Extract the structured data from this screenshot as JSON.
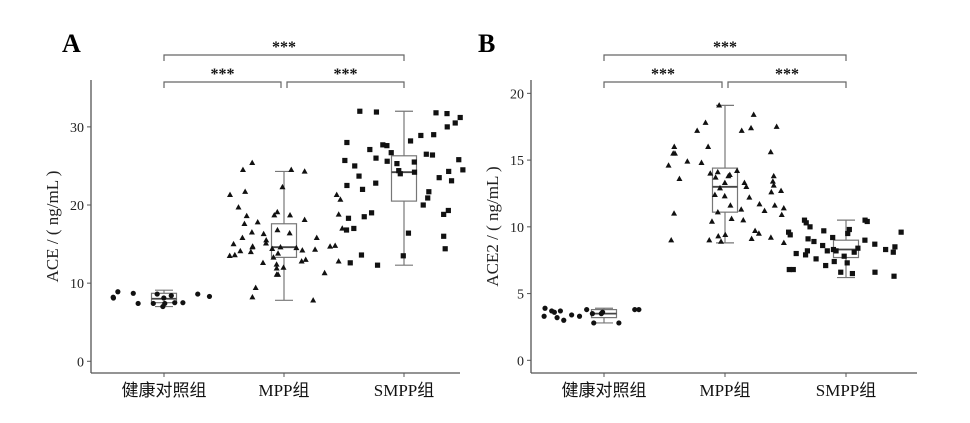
{
  "chart_data": [
    {
      "type": "box+scatter",
      "panel_label": "A",
      "ylabel": "ACE / ( ng/mL )",
      "xlabel": "",
      "categories": [
        "健康对照组",
        "MPP组",
        "SMPP组"
      ],
      "ylim": [
        -1.5,
        36
      ],
      "yticks": [
        0,
        10,
        20,
        30
      ],
      "grid": false,
      "markers": [
        "circle",
        "triangle",
        "square"
      ],
      "boxes": [
        {
          "min": 7.0,
          "q1": 7.5,
          "median": 8.0,
          "q3": 8.7,
          "max": 9.1
        },
        {
          "min": 7.8,
          "q1": 13.3,
          "median": 14.6,
          "q3": 17.6,
          "max": 24.3
        },
        {
          "min": 12.3,
          "q1": 20.5,
          "median": 24.2,
          "q3": 26.3,
          "max": 32.0
        }
      ],
      "points": [
        [
          7.0,
          8.4,
          8.9,
          8.7,
          8.6,
          7.4,
          8.1,
          8.3,
          7.5,
          7.4,
          7.4,
          8.6,
          7.5,
          8.2,
          8.1
        ],
        [
          25.4,
          24.3,
          24.5,
          24.5,
          22.3,
          21.7,
          21.3,
          21.3,
          20.7,
          19.7,
          19.1,
          18.8,
          18.6,
          18.7,
          18.7,
          18.1,
          17.8,
          17.6,
          17.0,
          16.8,
          16.5,
          16.4,
          16.3,
          15.8,
          15.8,
          15.5,
          15.1,
          15.0,
          14.8,
          14.7,
          14.7,
          14.6,
          14.6,
          14.5,
          14.4,
          14.3,
          14.2,
          14.1,
          14.0,
          13.8,
          13.6,
          13.5,
          13.3,
          13.0,
          12.8,
          12.8,
          12.6,
          12.4,
          12.0,
          11.9,
          11.3,
          11.1,
          11.1,
          9.4,
          8.2,
          7.8
        ],
        [
          32.0,
          31.9,
          31.8,
          31.7,
          31.2,
          30.5,
          30.0,
          29.0,
          28.9,
          28.2,
          28.0,
          27.7,
          27.6,
          27.1,
          26.7,
          26.5,
          26.4,
          26.0,
          25.8,
          25.7,
          25.6,
          25.5,
          25.3,
          25.0,
          24.5,
          24.4,
          24.3,
          24.2,
          24.0,
          23.7,
          23.5,
          23.1,
          22.8,
          22.5,
          22.0,
          21.7,
          20.9,
          20.0,
          19.3,
          19.0,
          18.8,
          18.5,
          18.3,
          17.0,
          16.8,
          16.4,
          16.0,
          14.4,
          13.6,
          13.5,
          12.6,
          12.3
        ]
      ],
      "comparisons": [
        {
          "from": 0,
          "to": 2,
          "label": "***",
          "level": 2
        },
        {
          "from": 0,
          "to": 1,
          "label": "***",
          "level": 1
        },
        {
          "from": 1,
          "to": 2,
          "label": "***",
          "level": 1
        }
      ]
    },
    {
      "type": "box+scatter",
      "panel_label": "B",
      "ylabel": "ACE2 / ( ng/mL )",
      "xlabel": "",
      "categories": [
        "健康对照组",
        "MPP组",
        "SMPP组"
      ],
      "ylim": [
        -0.95,
        21
      ],
      "yticks": [
        0,
        5,
        10,
        15,
        20
      ],
      "grid": false,
      "markers": [
        "circle",
        "triangle",
        "square"
      ],
      "boxes": [
        {
          "min": 2.8,
          "q1": 3.2,
          "median": 3.5,
          "q3": 3.8,
          "max": 3.9
        },
        {
          "min": 8.8,
          "q1": 11.1,
          "median": 13.0,
          "q3": 14.4,
          "max": 19.1
        },
        {
          "min": 6.2,
          "q1": 7.7,
          "median": 8.3,
          "q3": 9.0,
          "max": 10.5
        }
      ],
      "points": [
        [
          3.6,
          3.7,
          3.8,
          3.4,
          3.3,
          3.8,
          3.7,
          3.0,
          3.3,
          2.8,
          3.6,
          3.5,
          3.2,
          3.5,
          2.8,
          3.9,
          3.8
        ],
        [
          19.1,
          18.4,
          17.8,
          17.5,
          17.4,
          17.2,
          17.2,
          16.0,
          16.0,
          15.6,
          15.5,
          15.5,
          14.9,
          14.8,
          14.6,
          14.2,
          14.1,
          14.0,
          13.9,
          13.8,
          13.8,
          13.7,
          13.6,
          13.4,
          13.3,
          13.3,
          13.1,
          13.0,
          12.9,
          12.7,
          12.6,
          12.4,
          12.3,
          12.2,
          11.7,
          11.6,
          11.6,
          11.4,
          11.3,
          11.2,
          11.1,
          11.0,
          10.9,
          10.6,
          10.5,
          10.4,
          9.7,
          9.5,
          9.4,
          9.3,
          9.2,
          9.1,
          9.0,
          9.0,
          8.9,
          8.8
        ],
        [
          10.5,
          10.5,
          10.4,
          10.3,
          10.0,
          9.8,
          9.7,
          9.6,
          9.6,
          9.5,
          9.4,
          9.2,
          9.1,
          9.0,
          8.9,
          8.7,
          8.6,
          8.5,
          8.4,
          8.3,
          8.3,
          8.2,
          8.2,
          8.2,
          8.1,
          8.1,
          8.0,
          7.9,
          7.8,
          7.6,
          7.4,
          7.3,
          7.1,
          6.8,
          6.8,
          6.6,
          6.6,
          6.5,
          6.3
        ]
      ],
      "comparisons": [
        {
          "from": 0,
          "to": 2,
          "label": "***",
          "level": 2
        },
        {
          "from": 0,
          "to": 1,
          "label": "***",
          "level": 1
        },
        {
          "from": 1,
          "to": 2,
          "label": "***",
          "level": 1
        }
      ]
    }
  ]
}
